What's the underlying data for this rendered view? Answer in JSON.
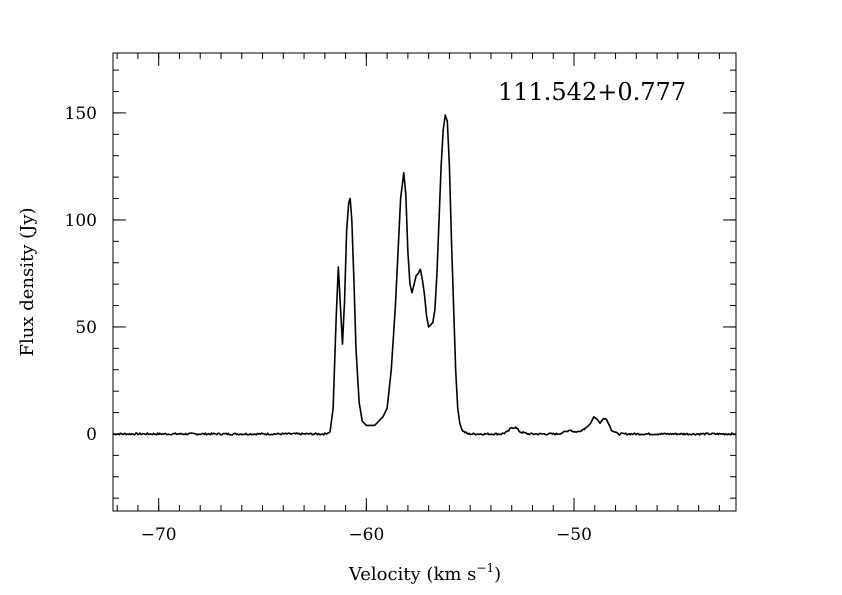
{
  "chart_data": {
    "type": "line",
    "title": "",
    "annotation": "111.542+0.777",
    "xlabel": "Velocity (km s",
    "xlabel_unit_exponent": "−1",
    "xlabel_suffix": ")",
    "ylabel": "Flux density (Jy)",
    "xlim": [
      -72.2,
      -42.2
    ],
    "ylim": [
      -36,
      178
    ],
    "x_ticks": [
      -70,
      -60,
      -50
    ],
    "x_tick_labels": [
      "−70",
      "−60",
      "−50"
    ],
    "y_ticks": [
      0,
      50,
      100,
      150
    ],
    "y_tick_labels": [
      "0",
      "50",
      "100",
      "150"
    ],
    "x_minor_step": 1,
    "y_minor_step": 10,
    "grid": false,
    "series": [
      {
        "x": [
          -72.2,
          -62.0,
          -61.75,
          -61.6,
          -61.45,
          -61.35,
          -61.25,
          -61.15,
          -61.05,
          -60.95,
          -60.85,
          -60.78,
          -60.7,
          -60.6,
          -60.5,
          -60.35,
          -60.2,
          -60.0,
          -59.8,
          -59.6,
          -59.4,
          -59.2,
          -59.0,
          -58.8,
          -58.6,
          -58.45,
          -58.35,
          -58.2,
          -58.1,
          -58.0,
          -57.9,
          -57.8,
          -57.7,
          -57.6,
          -57.5,
          -57.4,
          -57.3,
          -57.2,
          -57.1,
          -57.0,
          -56.9,
          -56.8,
          -56.7,
          -56.6,
          -56.5,
          -56.4,
          -56.3,
          -56.2,
          -56.1,
          -56.0,
          -55.9,
          -55.8,
          -55.7,
          -55.6,
          -55.5,
          -55.4,
          -55.3,
          -55.2,
          -55.1,
          -55.0,
          -54.8,
          -54.5,
          -54.0,
          -53.5,
          -53.2,
          -53.0,
          -52.8,
          -52.6,
          -52.2,
          -51.5,
          -50.8,
          -50.4,
          -50.2,
          -50.0,
          -49.8,
          -49.6,
          -49.4,
          -49.2,
          -49.05,
          -48.9,
          -48.75,
          -48.6,
          -48.45,
          -48.3,
          -48.2,
          -48.05,
          -47.9,
          -47.6,
          -47.2,
          -46.0,
          -44.0,
          -42.2
        ],
        "y": [
          0,
          0,
          1,
          12,
          55,
          78,
          60,
          42,
          62,
          95,
          108,
          110,
          100,
          72,
          40,
          15,
          6,
          4,
          4,
          4,
          6,
          8,
          12,
          30,
          60,
          90,
          110,
          122,
          112,
          85,
          70,
          66,
          70,
          74,
          75,
          77,
          72,
          65,
          55,
          50,
          51,
          52,
          58,
          75,
          100,
          125,
          142,
          149,
          146,
          125,
          90,
          60,
          30,
          12,
          5,
          2,
          1,
          0.5,
          0,
          0,
          0,
          0,
          0,
          0,
          1,
          3,
          3,
          1,
          0,
          0,
          0,
          1,
          2,
          1,
          1,
          2,
          3,
          5,
          8,
          7,
          5,
          7,
          7,
          4,
          2,
          1,
          0,
          0,
          0,
          0,
          0,
          0
        ]
      }
    ]
  }
}
